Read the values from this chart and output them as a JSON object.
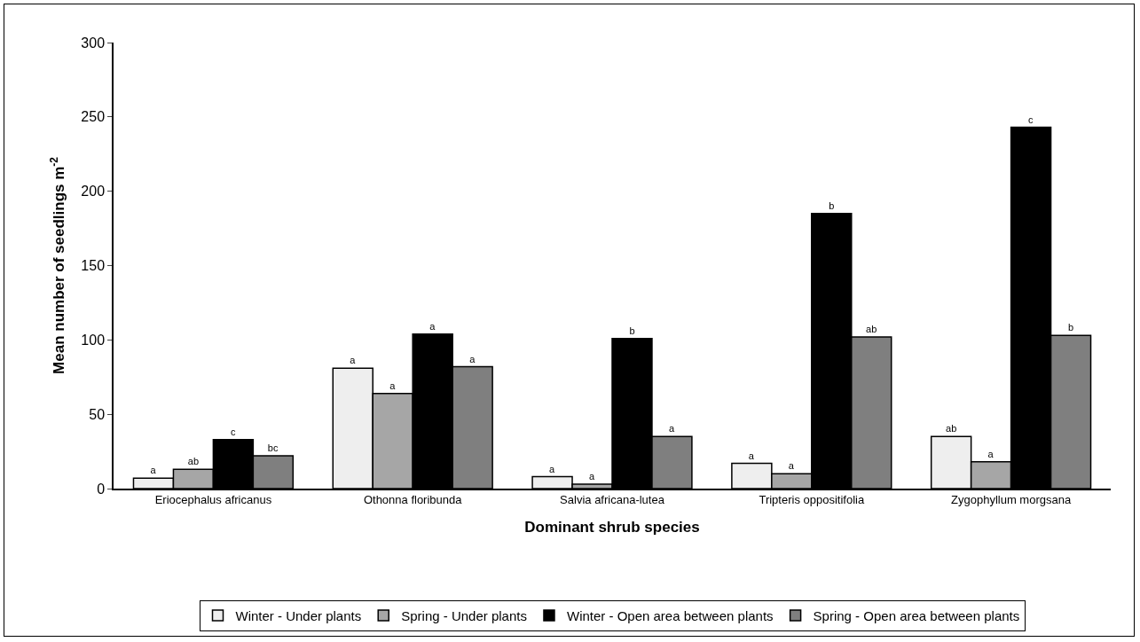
{
  "chart_data": {
    "type": "bar",
    "xlabel": "Dominant shrub species",
    "ylabel": "Mean number of seedlings m$^{-2}$",
    "categories": [
      "Eriocephalus africanus",
      "Othonna floribunda",
      "Salvia africana-lutea",
      "Tripteris oppositifolia",
      "Zygophyllum morgsana"
    ],
    "series": [
      {
        "name": "Winter - Under plants",
        "color": "#eeeeee",
        "values": [
          7,
          81,
          8,
          17,
          35
        ],
        "value_labels": [
          "a",
          "a",
          "a",
          "a",
          "ab"
        ]
      },
      {
        "name": "Spring - Under plants",
        "color": "#a6a6a6",
        "values": [
          13,
          64,
          3,
          10,
          18
        ],
        "value_labels": [
          "ab",
          "a",
          "a",
          "a",
          "a"
        ]
      },
      {
        "name": "Winter - Open area between plants",
        "color": "#000000",
        "values": [
          33,
          104,
          101,
          185,
          243
        ],
        "value_labels": [
          "c",
          "a",
          "b",
          "b",
          "c"
        ]
      },
      {
        "name": "Spring - Open area between plants",
        "color": "#7f7f7f",
        "values": [
          22,
          82,
          35,
          102,
          103
        ],
        "value_labels": [
          "bc",
          "a",
          "a",
          "ab",
          "b"
        ]
      }
    ],
    "ylim": [
      0,
      300
    ],
    "yticks": [
      0,
      50,
      100,
      150,
      200,
      250,
      300
    ],
    "grid": false,
    "legend": "bottom"
  }
}
